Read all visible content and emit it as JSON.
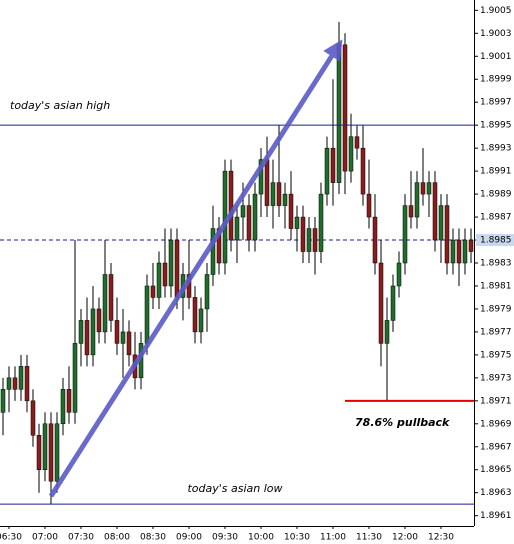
{
  "chart_data": {
    "type": "candlestick",
    "categories": [
      null,
      "06:30",
      null,
      null,
      null,
      null,
      null,
      "07:00",
      null,
      null,
      null,
      null,
      null,
      "07:30",
      null,
      null,
      null,
      null,
      null,
      "08:00",
      null,
      null,
      null,
      null,
      null,
      "08:30",
      null,
      null,
      null,
      null,
      null,
      "09:00",
      null,
      null,
      null,
      null,
      null,
      "09:30",
      null,
      null,
      null,
      null,
      null,
      "10:00",
      null,
      null,
      null,
      null,
      null,
      "10:30",
      null,
      null,
      null,
      null,
      null,
      "11:00",
      null,
      null,
      null,
      null,
      null,
      "11:30",
      null,
      null,
      null,
      null,
      null,
      "12:00",
      null,
      null,
      null,
      null,
      null,
      "12:30",
      null,
      null,
      null,
      null,
      null
    ],
    "open": [
      1.897,
      1.8972,
      1.8973,
      1.8972,
      1.8974,
      1.8971,
      1.8968,
      1.8965,
      1.8969,
      1.8964,
      1.8969,
      1.8972,
      1.897,
      1.8976,
      1.8978,
      1.8975,
      1.8979,
      1.8977,
      1.8982,
      1.8978,
      1.8976,
      1.8977,
      1.8975,
      1.8973,
      1.8976,
      1.8981,
      1.898,
      1.8983,
      1.8981,
      1.8985,
      1.898,
      1.8982,
      1.898,
      1.8977,
      1.8979,
      1.8982,
      1.8986,
      1.8983,
      1.8991,
      1.8985,
      1.8987,
      1.8988,
      1.8985,
      1.8989,
      1.8992,
      1.8988,
      1.899,
      1.8988,
      1.8989,
      1.8986,
      1.8987,
      1.8984,
      1.8986,
      1.8984,
      1.8989,
      1.8993,
      1.899,
      1.9002,
      1.8991,
      1.8994,
      1.8993,
      1.8989,
      1.8987,
      1.8983,
      1.8976,
      1.8978,
      1.8981,
      1.8983,
      1.8988,
      1.8987,
      1.899,
      1.8989,
      1.899,
      1.8985,
      1.8988,
      1.8983,
      1.8985,
      1.8983,
      1.8985
    ],
    "high": [
      1.8973,
      1.8974,
      1.8974,
      1.8975,
      1.8975,
      1.8972,
      1.8969,
      1.897,
      1.897,
      1.897,
      1.8973,
      1.8974,
      1.8985,
      1.8979,
      1.898,
      1.8981,
      1.898,
      1.8985,
      1.8983,
      1.898,
      1.8979,
      1.8978,
      1.8977,
      1.8977,
      1.8982,
      1.8983,
      1.8984,
      1.8986,
      1.8986,
      1.8986,
      1.8983,
      1.8985,
      1.8981,
      1.898,
      1.8983,
      1.8988,
      1.8987,
      1.8992,
      1.8992,
      1.8988,
      1.899,
      1.8989,
      1.899,
      1.8993,
      1.8994,
      1.8992,
      1.8995,
      1.899,
      1.8991,
      1.8988,
      1.8988,
      1.8987,
      1.8987,
      1.899,
      1.8994,
      1.8999,
      1.9004,
      1.9003,
      1.8996,
      1.8995,
      1.8995,
      1.8992,
      1.8989,
      1.8985,
      1.898,
      1.8982,
      1.8984,
      1.8989,
      1.8991,
      1.8991,
      1.8993,
      1.8991,
      1.8991,
      1.8989,
      1.8989,
      1.8986,
      1.8986,
      1.8986,
      1.8986
    ],
    "low": [
      1.8968,
      1.897,
      1.8971,
      1.8971,
      1.897,
      1.8967,
      1.8963,
      1.8964,
      1.8962,
      1.8963,
      1.8968,
      1.8969,
      1.8969,
      1.8974,
      1.8974,
      1.8974,
      1.8976,
      1.8976,
      1.8977,
      1.8975,
      1.8973,
      1.8974,
      1.8972,
      1.8972,
      1.8975,
      1.8979,
      1.8979,
      1.898,
      1.898,
      1.8979,
      1.8978,
      1.8979,
      1.8976,
      1.8976,
      1.8977,
      1.8981,
      1.8982,
      1.8982,
      1.8984,
      1.8983,
      1.8985,
      1.8984,
      1.8984,
      1.8987,
      1.8987,
      1.8986,
      1.8987,
      1.8986,
      1.8985,
      1.8984,
      1.8983,
      1.8983,
      1.8982,
      1.8983,
      1.8988,
      1.8988,
      1.8989,
      1.8989,
      1.899,
      1.8992,
      1.8988,
      1.8986,
      1.8982,
      1.8974,
      1.8971,
      1.8977,
      1.898,
      1.8982,
      1.8986,
      1.8986,
      1.8988,
      1.8987,
      1.8984,
      1.8983,
      1.8982,
      1.8982,
      1.8981,
      1.8982,
      1.8983
    ],
    "close": [
      1.8972,
      1.8973,
      1.8972,
      1.8974,
      1.8971,
      1.8968,
      1.8965,
      1.8969,
      1.8964,
      1.8969,
      1.8972,
      1.897,
      1.8976,
      1.8978,
      1.8975,
      1.8979,
      1.8977,
      1.8982,
      1.8978,
      1.8976,
      1.8977,
      1.8975,
      1.8973,
      1.8976,
      1.8981,
      1.898,
      1.8983,
      1.8981,
      1.8985,
      1.898,
      1.8982,
      1.898,
      1.8977,
      1.8979,
      1.8982,
      1.8986,
      1.8983,
      1.8991,
      1.8985,
      1.8987,
      1.8988,
      1.8985,
      1.8989,
      1.8992,
      1.8988,
      1.899,
      1.8988,
      1.8989,
      1.8986,
      1.8987,
      1.8984,
      1.8986,
      1.8984,
      1.8989,
      1.8993,
      1.899,
      1.9002,
      1.8991,
      1.8994,
      1.8993,
      1.8989,
      1.8987,
      1.8983,
      1.8976,
      1.8978,
      1.8981,
      1.8983,
      1.8988,
      1.8987,
      1.899,
      1.8989,
      1.899,
      1.8985,
      1.8988,
      1.8983,
      1.8985,
      1.8983,
      1.8985,
      1.8984
    ],
    "up_color": "#1f6e2a",
    "down_color": "#8c1c1c",
    "ylim": [
      1.89601,
      1.90059
    ],
    "yticks": [
      1.9005,
      1.9003,
      1.9001,
      1.8999,
      1.8997,
      1.8995,
      1.8993,
      1.8991,
      1.8989,
      1.8987,
      1.8985,
      1.8983,
      1.8981,
      1.8979,
      1.8977,
      1.8975,
      1.8973,
      1.8971,
      1.8969,
      1.8967,
      1.8965,
      1.8963,
      1.8961
    ],
    "current_price": 1.8985,
    "levels": [
      {
        "label": "today's asian high",
        "value": 1.8995,
        "color": "#1a1a9c"
      },
      {
        "label": "today's asian low",
        "value": 1.8962,
        "color": "#1a1a9c"
      },
      {
        "label": "78.6% pullback",
        "value": 1.8971,
        "color": "#e00000"
      }
    ],
    "trend_color": "#5a5ac8"
  }
}
